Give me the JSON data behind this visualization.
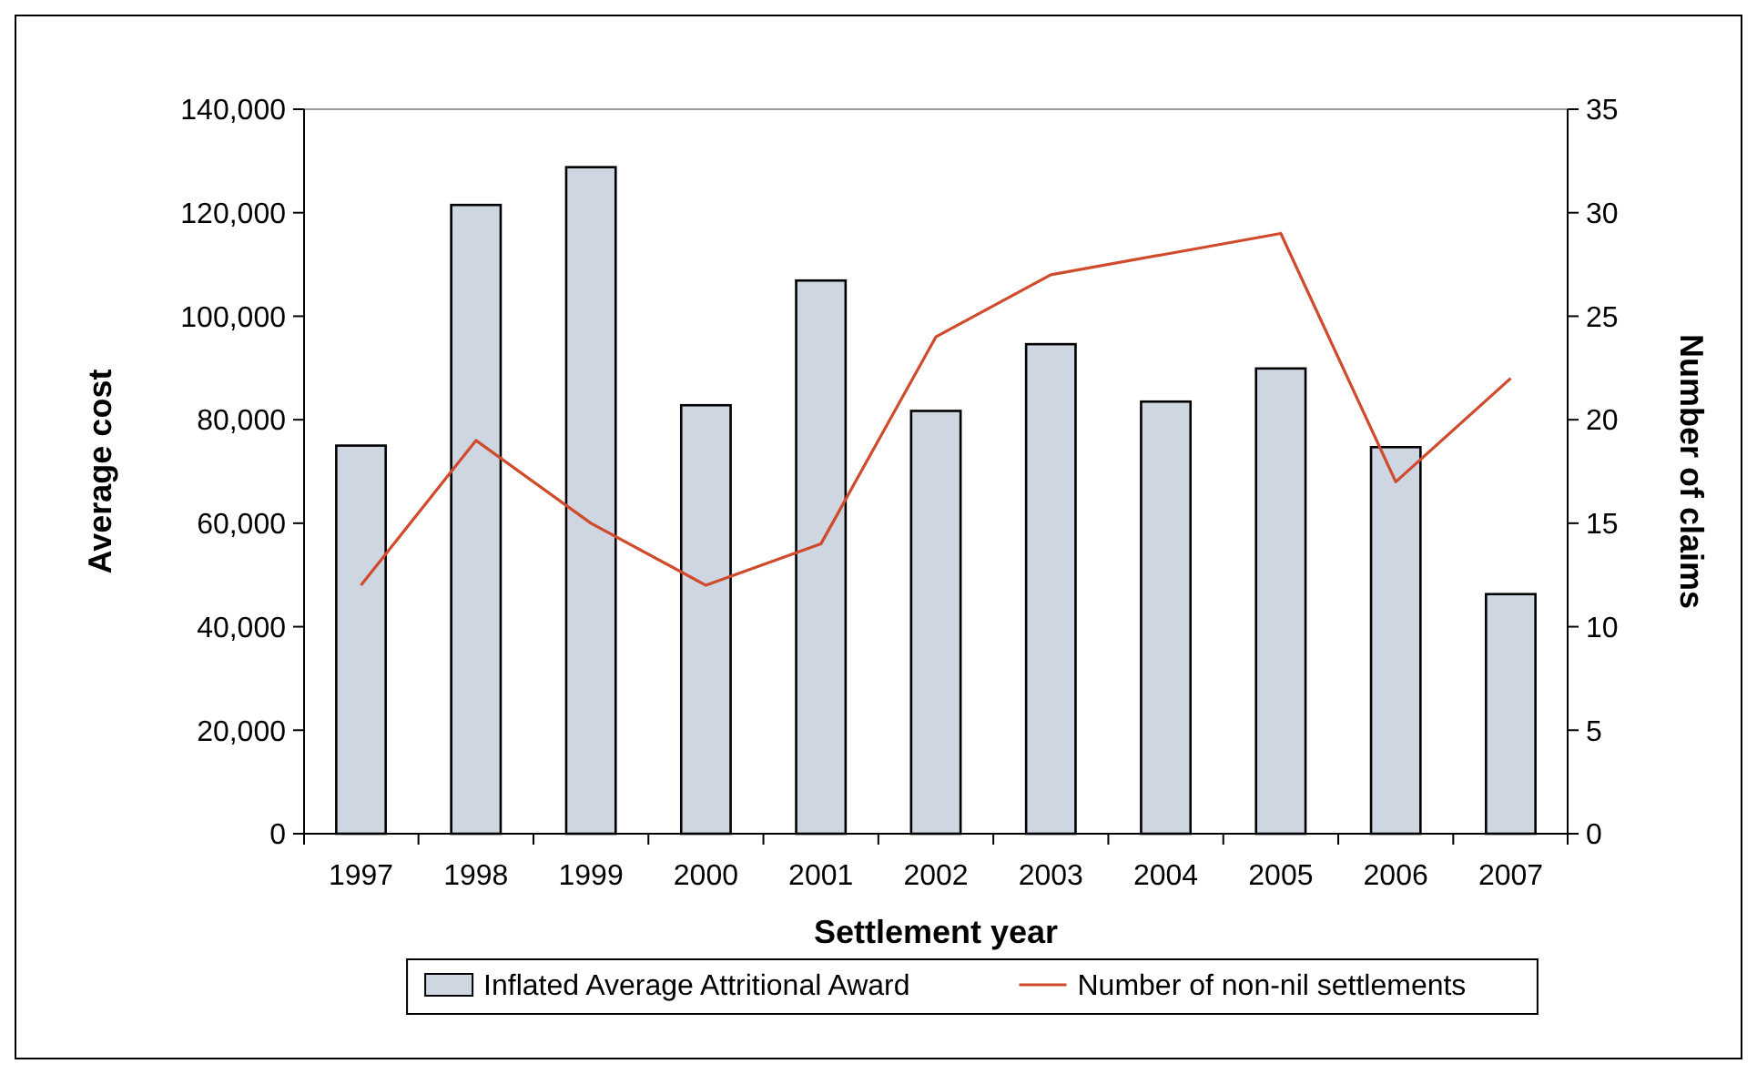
{
  "chart_data": {
    "type": "bar",
    "xlabel": "Settlement year",
    "ylabel": "Average cost",
    "y2label": "Number of claims",
    "categories": [
      "1997",
      "1998",
      "1999",
      "2000",
      "2001",
      "2002",
      "2003",
      "2004",
      "2005",
      "2006",
      "2007"
    ],
    "series": [
      {
        "name": "Inflated Average Attritional Award",
        "color": "#cdd6e1",
        "values": [
          75000,
          121500,
          128800,
          82800,
          106900,
          81700,
          94600,
          83500,
          89900,
          74700,
          46300
        ]
      },
      {
        "name": "Number of non-nil settlements",
        "type": "line",
        "axis": "y2",
        "color": "#d04a2c",
        "values": [
          12,
          19,
          15,
          12,
          14,
          24,
          27,
          28,
          29,
          17,
          22
        ]
      }
    ],
    "ylim": [
      0,
      140000
    ],
    "yticks": [
      {
        "value": 0,
        "label": "0"
      },
      {
        "value": 20000,
        "label": "20,000"
      },
      {
        "value": 40000,
        "label": "40,000"
      },
      {
        "value": 60000,
        "label": "60,000"
      },
      {
        "value": 80000,
        "label": "80,000"
      },
      {
        "value": 100000,
        "label": "100,000"
      },
      {
        "value": 120000,
        "label": "120,000"
      },
      {
        "value": 140000,
        "label": "140,000"
      }
    ],
    "y2lim": [
      0,
      35
    ],
    "y2ticks": [
      0,
      5,
      10,
      15,
      20,
      25,
      30,
      35
    ],
    "legend": "bottom",
    "grid": false
  }
}
